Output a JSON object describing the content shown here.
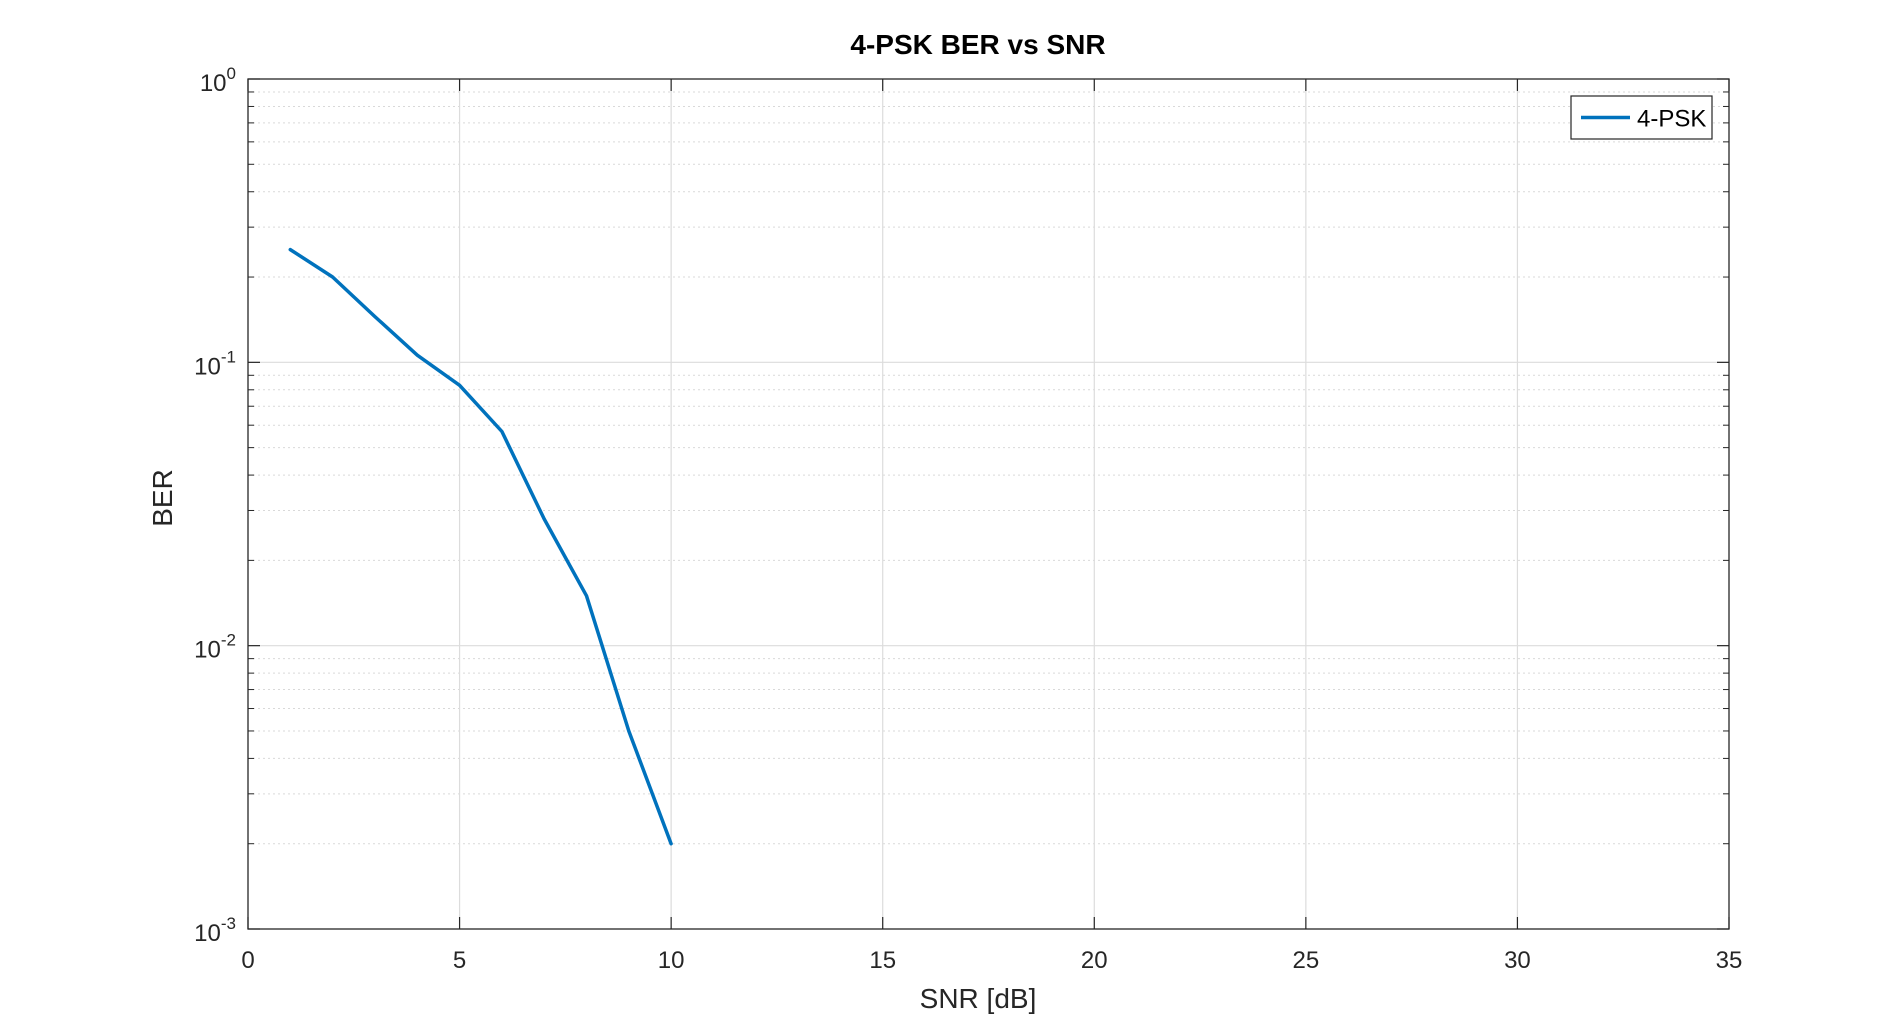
{
  "chart_data": {
    "type": "line",
    "title": "4-PSK BER vs SNR",
    "xlabel": "SNR [dB]",
    "ylabel": "BER",
    "xlim": [
      0,
      35
    ],
    "ylim": [
      0.001,
      1
    ],
    "yscale": "log",
    "grid": true,
    "minor_grid": true,
    "legend_position": "top-right",
    "x_ticks": [
      "0",
      "5",
      "10",
      "15",
      "20",
      "25",
      "30",
      "35"
    ],
    "y_ticks": [
      {
        "base": "10",
        "exp": "0"
      },
      {
        "base": "10",
        "exp": "-1"
      },
      {
        "base": "10",
        "exp": "-2"
      },
      {
        "base": "10",
        "exp": "-3"
      }
    ],
    "series": [
      {
        "name": "4-PSK",
        "color": "#0072BD",
        "x": [
          1,
          2,
          3,
          4,
          5,
          6,
          7,
          8,
          9,
          10
        ],
        "y": [
          0.25,
          0.2,
          0.145,
          0.106,
          0.083,
          0.057,
          0.028,
          0.015,
          0.005,
          0.002
        ]
      }
    ]
  }
}
